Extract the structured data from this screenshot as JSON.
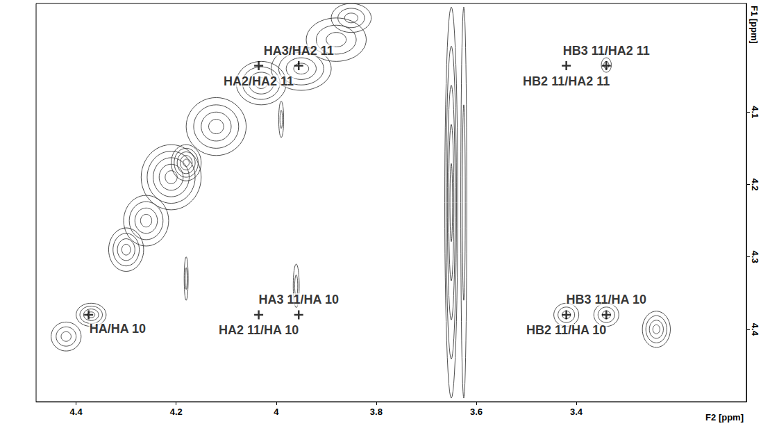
{
  "chart_data": {
    "type": "contour",
    "x_label": "F2 [ppm]",
    "y_label": "F1 [ppm]",
    "xlim": [
      4.48,
      3.06
    ],
    "xticks": [
      4.4,
      4.2,
      4.0,
      3.8,
      3.6,
      3.4
    ],
    "ylim": [
      3.95,
      4.5
    ],
    "yticks": [
      4.1,
      4.2,
      4.3,
      4.4
    ],
    "grid": false,
    "color": "#000000",
    "peaks": [
      {
        "label": "HA3/HA2 11",
        "x": 3.955,
        "y": 4.036
      },
      {
        "label": "HA2/HA2 11",
        "x": 4.035,
        "y": 4.036
      },
      {
        "label": "HB3 11/HA2 11",
        "x": 3.34,
        "y": 4.036
      },
      {
        "label": "HB2 11/HA2 11",
        "x": 3.42,
        "y": 4.036
      },
      {
        "label": "HA/HA 10",
        "x": 4.375,
        "y": 4.38
      },
      {
        "label": "HA3 11/HA 10",
        "x": 3.955,
        "y": 4.38
      },
      {
        "label": "HA2 11/HA 10",
        "x": 4.035,
        "y": 4.38
      },
      {
        "label": "HB3 11/HA 10",
        "x": 3.34,
        "y": 4.38
      },
      {
        "label": "HB2 11/HA 10",
        "x": 3.42,
        "y": 4.38
      }
    ],
    "contours": [
      {
        "x": 4.37,
        "y": 4.38,
        "rx": 0.03,
        "ry": 0.016,
        "levels": 4
      },
      {
        "x": 4.42,
        "y": 4.41,
        "rx": 0.03,
        "ry": 0.02,
        "levels": 3
      },
      {
        "x": 4.3,
        "y": 4.29,
        "rx": 0.035,
        "ry": 0.03,
        "levels": 4
      },
      {
        "x": 4.26,
        "y": 4.25,
        "rx": 0.045,
        "ry": 0.035,
        "levels": 4
      },
      {
        "x": 4.18,
        "y": 4.17,
        "rx": 0.03,
        "ry": 0.025,
        "levels": 5
      },
      {
        "x": 4.21,
        "y": 4.19,
        "rx": 0.06,
        "ry": 0.045,
        "levels": 5
      },
      {
        "x": 4.12,
        "y": 4.12,
        "rx": 0.06,
        "ry": 0.04,
        "levels": 4
      },
      {
        "x": 4.03,
        "y": 4.06,
        "rx": 0.05,
        "ry": 0.03,
        "levels": 4
      },
      {
        "x": 3.95,
        "y": 4.04,
        "rx": 0.06,
        "ry": 0.03,
        "levels": 4
      },
      {
        "x": 3.88,
        "y": 4.0,
        "rx": 0.06,
        "ry": 0.03,
        "levels": 3
      },
      {
        "x": 3.85,
        "y": 3.97,
        "rx": 0.04,
        "ry": 0.02,
        "levels": 3
      },
      {
        "x": 3.65,
        "y": 4.225,
        "rx": 0.013,
        "ry": 0.27,
        "levels": 5
      },
      {
        "x": 3.625,
        "y": 4.225,
        "rx": 0.006,
        "ry": 0.27,
        "levels": 2
      },
      {
        "x": 3.42,
        "y": 4.38,
        "rx": 0.025,
        "ry": 0.016,
        "levels": 3
      },
      {
        "x": 3.34,
        "y": 4.38,
        "rx": 0.025,
        "ry": 0.016,
        "levels": 3
      },
      {
        "x": 3.24,
        "y": 4.4,
        "rx": 0.028,
        "ry": 0.025,
        "levels": 4
      },
      {
        "x": 3.34,
        "y": 4.035,
        "rx": 0.01,
        "ry": 0.01,
        "levels": 2
      },
      {
        "x": 3.99,
        "y": 4.11,
        "rx": 0.005,
        "ry": 0.025,
        "levels": 2
      },
      {
        "x": 3.96,
        "y": 4.34,
        "rx": 0.006,
        "ry": 0.03,
        "levels": 2
      },
      {
        "x": 4.18,
        "y": 4.33,
        "rx": 0.004,
        "ry": 0.03,
        "levels": 2
      }
    ]
  }
}
